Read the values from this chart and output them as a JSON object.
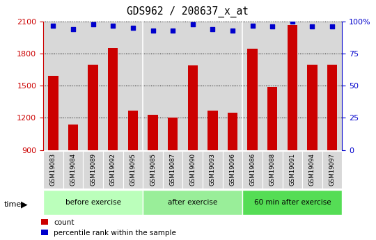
{
  "title": "GDS962 / 208637_x_at",
  "categories": [
    "GSM19083",
    "GSM19084",
    "GSM19089",
    "GSM19092",
    "GSM19095",
    "GSM19085",
    "GSM19087",
    "GSM19090",
    "GSM19093",
    "GSM19096",
    "GSM19086",
    "GSM19088",
    "GSM19091",
    "GSM19094",
    "GSM19097"
  ],
  "counts": [
    1590,
    1140,
    1700,
    1855,
    1270,
    1230,
    1200,
    1690,
    1265,
    1250,
    1850,
    1490,
    2070,
    1700,
    1700
  ],
  "percentile": [
    97,
    94,
    98,
    97,
    95,
    93,
    93,
    98,
    94,
    93,
    97,
    96,
    100,
    96,
    96
  ],
  "groups": [
    {
      "label": "before exercise",
      "start": 0,
      "end": 5,
      "color": "#bbffbb"
    },
    {
      "label": "after exercise",
      "start": 5,
      "end": 10,
      "color": "#99ee99"
    },
    {
      "label": "60 min after exercise",
      "start": 10,
      "end": 15,
      "color": "#55dd55"
    }
  ],
  "ylim": [
    900,
    2100
  ],
  "yticks": [
    900,
    1200,
    1500,
    1800,
    2100
  ],
  "y2lim": [
    0,
    100
  ],
  "y2ticks": [
    0,
    25,
    50,
    75,
    100
  ],
  "bar_color": "#cc0000",
  "dot_color": "#0000cc",
  "grid_color": "#000000",
  "bg_color": "#d8d8d8",
  "left_axis_color": "#cc0000",
  "right_axis_color": "#0000cc",
  "time_label": "time",
  "legend_count": "count",
  "legend_pct": "percentile rank within the sample"
}
